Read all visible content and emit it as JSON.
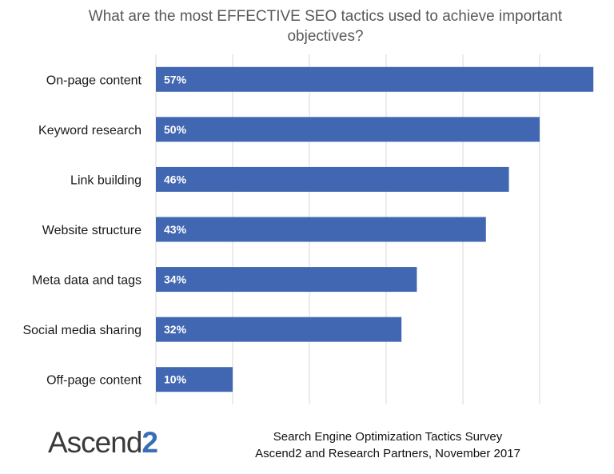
{
  "chart_data": {
    "type": "bar",
    "orientation": "horizontal",
    "title_lines": [
      "What are the most EFFECTIVE SEO tactics used to achieve important",
      "objectives?"
    ],
    "categories": [
      "On-page content",
      "Keyword research",
      "Link building",
      "Website structure",
      "Meta data and tags",
      "Social media sharing",
      "Off-page content"
    ],
    "values": [
      57,
      50,
      46,
      43,
      34,
      32,
      10
    ],
    "data_labels": [
      "57%",
      "50%",
      "46%",
      "43%",
      "34%",
      "32%",
      "10%"
    ],
    "xlim": [
      0,
      60
    ],
    "grid": true,
    "bar_color": "#4267b2",
    "label_color": "#ffffff"
  },
  "footer": {
    "logo_text": "Ascend",
    "logo_accent": "2",
    "source_lines": [
      "Search Engine Optimization Tactics Survey",
      "Ascend2 and Research Partners, November 2017"
    ]
  }
}
